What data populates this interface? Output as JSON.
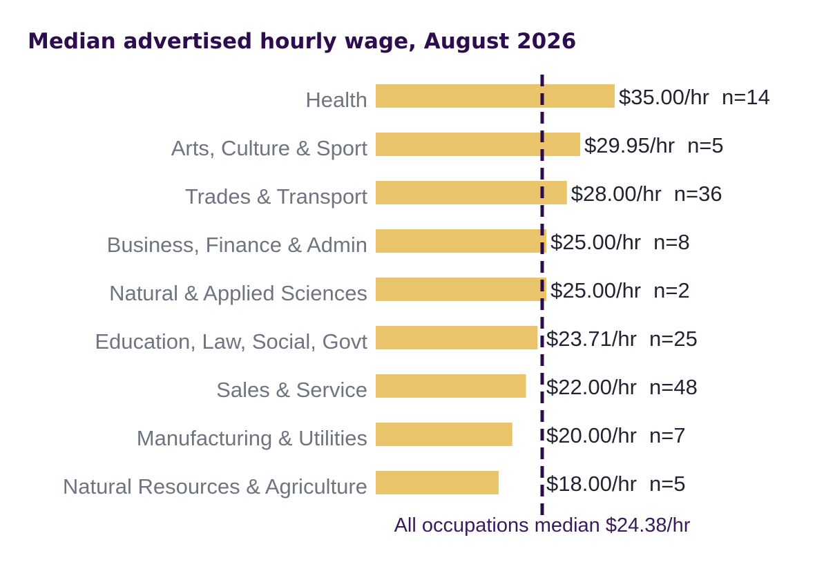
{
  "chart_data": {
    "type": "bar",
    "orientation": "horizontal",
    "title": "Median advertised hourly wage, August 2026",
    "categories": [
      "Health",
      "Arts, Culture & Sport",
      "Trades & Transport",
      "Business, Finance & Admin",
      "Natural & Applied Sciences",
      "Education, Law, Social, Govt",
      "Sales & Service",
      "Manufacturing & Utilities",
      "Natural Resources & Agriculture"
    ],
    "values": [
      35.0,
      29.95,
      28.0,
      25.0,
      25.0,
      23.71,
      22.0,
      20.0,
      18.0
    ],
    "value_labels": [
      "$35.00/hr",
      "$29.95/hr",
      "$28.00/hr",
      "$25.00/hr",
      "$25.00/hr",
      "$23.71/hr",
      "$22.00/hr",
      "$20.00/hr",
      "$18.00/hr"
    ],
    "counts": [
      "n=14",
      "n=5",
      "n=36",
      "n=8",
      "n=2",
      "n=25",
      "n=48",
      "n=7",
      "n=5"
    ],
    "reference_line": {
      "value": 24.38,
      "label": "All occupations median $24.38/hr",
      "style": "dashed"
    },
    "xlim": [
      0,
      35
    ],
    "grid": false,
    "colors": {
      "bar": "#e9c46a",
      "reference_line": "#2e0d4f",
      "title": "#2e0d4f",
      "category_text": "#6e7580",
      "value_text": "#1f2430",
      "reference_text": "#3b1a5c"
    }
  }
}
